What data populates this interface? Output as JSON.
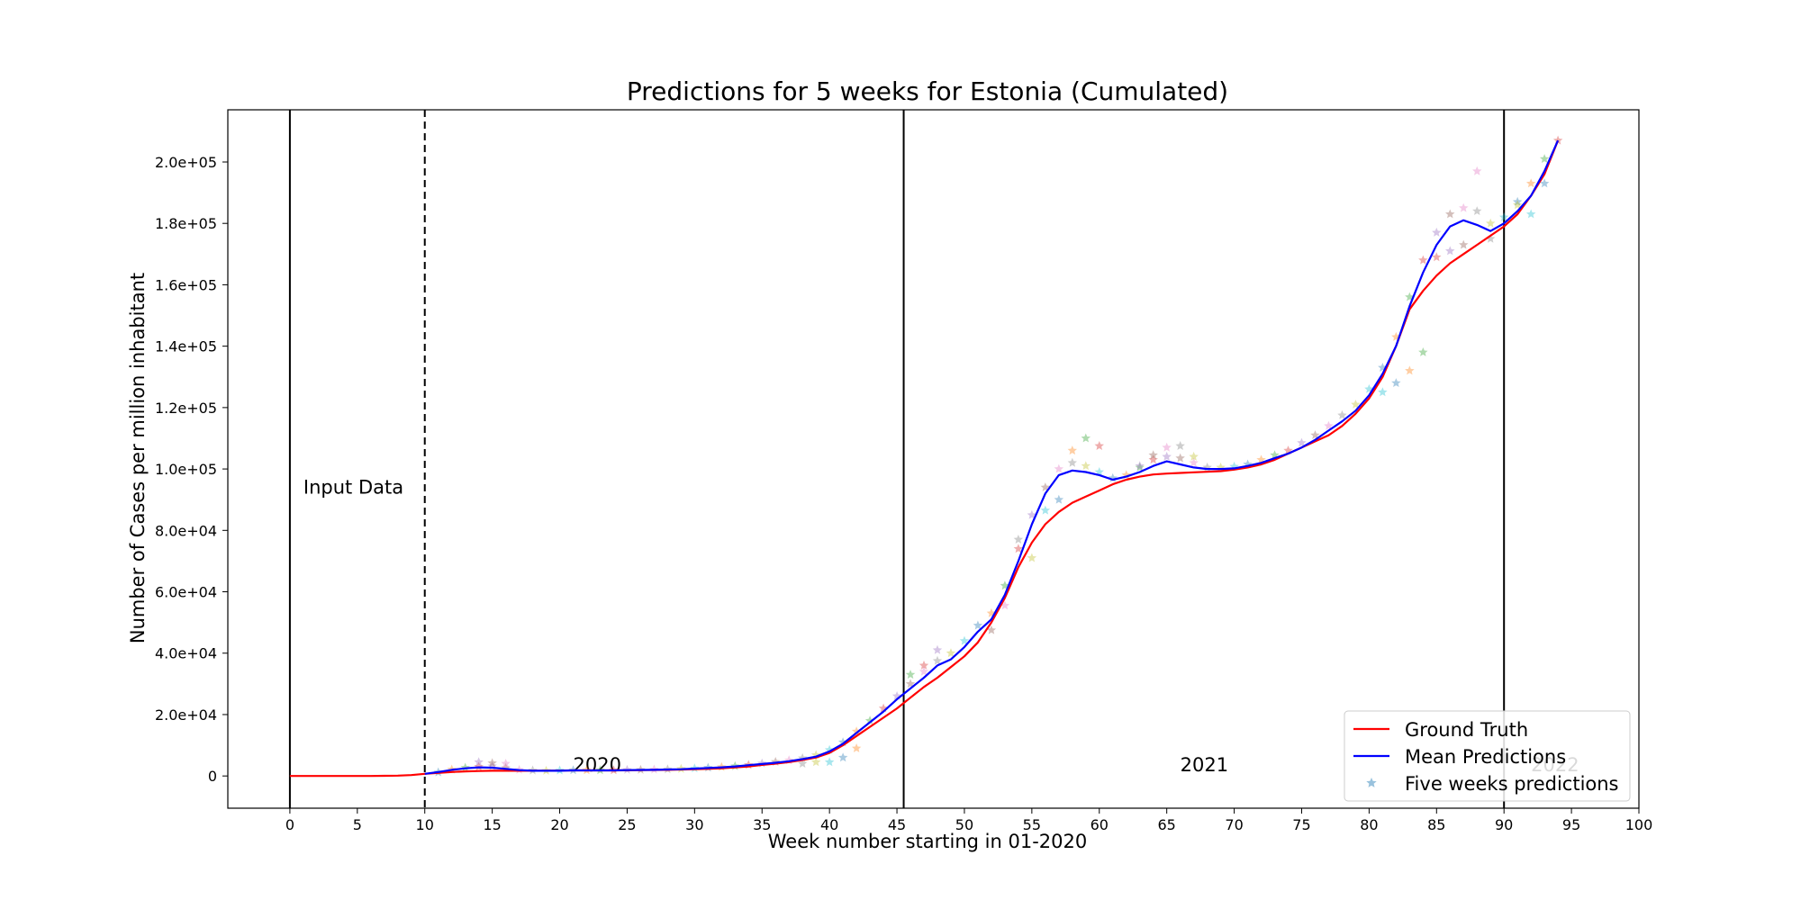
{
  "chart_data": {
    "type": "line",
    "title": "Predictions for 5 weeks for Estonia (Cumulated)",
    "xlabel": "Week number starting in 01-2020",
    "ylabel": "Number of Cases per million inhabitant",
    "xlim": [
      -4.6,
      100
    ],
    "ylim": [
      -10500,
      217000
    ],
    "xticks": [
      0,
      5,
      10,
      15,
      20,
      25,
      30,
      35,
      40,
      45,
      50,
      55,
      60,
      65,
      70,
      75,
      80,
      85,
      90,
      95,
      100
    ],
    "xtick_labels": [
      "0",
      "5",
      "10",
      "15",
      "20",
      "25",
      "30",
      "35",
      "40",
      "45",
      "50",
      "55",
      "60",
      "65",
      "70",
      "75",
      "80",
      "85",
      "90",
      "95",
      "100"
    ],
    "yticks": [
      0,
      20000,
      40000,
      60000,
      80000,
      100000,
      120000,
      140000,
      160000,
      180000,
      200000
    ],
    "ytick_labels": [
      "0",
      "2.0e+04",
      "4.0e+04",
      "6.0e+04",
      "8.0e+04",
      "1.0e+05",
      "1.2e+05",
      "1.4e+05",
      "1.6e+05",
      "1.8e+05",
      "2.0e+05"
    ],
    "vlines": [
      {
        "x": 0,
        "style": "solid"
      },
      {
        "x": 10,
        "style": "dashed"
      },
      {
        "x": 45.5,
        "style": "solid"
      },
      {
        "x": 90,
        "style": "solid"
      }
    ],
    "annotations": [
      {
        "text": "Input Data",
        "x": 1,
        "y": 92000,
        "color": "#000000"
      },
      {
        "text": "2020",
        "x": 21,
        "y": 1500,
        "color": "#000000"
      },
      {
        "text": "2021",
        "x": 66,
        "y": 1500,
        "color": "#000000"
      },
      {
        "text": "2022",
        "x": 92,
        "y": 1500,
        "color": "#bbbbbb"
      }
    ],
    "legend": {
      "position": "lower right",
      "entries": [
        {
          "label": "Ground Truth",
          "color": "#ff0000",
          "marker": "line"
        },
        {
          "label": "Mean Predictions",
          "color": "#0000ff",
          "marker": "line"
        },
        {
          "label": "Five weeks predictions",
          "color": "#7fb3d5",
          "marker": "star"
        }
      ]
    },
    "series": [
      {
        "name": "Ground Truth",
        "color": "#ff0000",
        "x": [
          0,
          1,
          2,
          3,
          4,
          5,
          6,
          7,
          8,
          9,
          10,
          11,
          12,
          13,
          14,
          15,
          16,
          17,
          18,
          19,
          20,
          21,
          22,
          23,
          24,
          25,
          26,
          27,
          28,
          29,
          30,
          31,
          32,
          33,
          34,
          35,
          36,
          37,
          38,
          39,
          40,
          41,
          42,
          43,
          44,
          45,
          46,
          47,
          48,
          49,
          50,
          51,
          52,
          53,
          54,
          55,
          56,
          57,
          58,
          59,
          60,
          61,
          62,
          63,
          64,
          65,
          66,
          67,
          68,
          69,
          70,
          71,
          72,
          73,
          74,
          75,
          76,
          77,
          78,
          79,
          80,
          81,
          82,
          83,
          84,
          85,
          86,
          87,
          88,
          89,
          90,
          91,
          92,
          93,
          94
        ],
        "y": [
          0,
          0,
          0,
          0,
          0,
          0,
          0,
          50,
          100,
          300,
          700,
          1000,
          1300,
          1500,
          1600,
          1700,
          1700,
          1700,
          1700,
          1700,
          1750,
          1800,
          1800,
          1800,
          1800,
          1850,
          1900,
          1950,
          2000,
          2100,
          2200,
          2300,
          2500,
          2800,
          3100,
          3600,
          4000,
          4500,
          5200,
          6000,
          7500,
          10000,
          13000,
          16000,
          19000,
          22000,
          25500,
          29000,
          32000,
          35500,
          39000,
          43500,
          50000,
          58000,
          68000,
          76000,
          82000,
          86000,
          89000,
          91000,
          93000,
          95000,
          96500,
          97500,
          98200,
          98500,
          98700,
          98900,
          99100,
          99300,
          99800,
          100500,
          101500,
          103000,
          105000,
          107000,
          109000,
          111000,
          114000,
          118000,
          123000,
          130000,
          140000,
          152000,
          158000,
          163000,
          167000,
          170000,
          173000,
          176000,
          179000,
          183000,
          189000,
          196000,
          207000
        ]
      },
      {
        "name": "Mean Predictions",
        "color": "#0000ff",
        "x": [
          10,
          11,
          12,
          13,
          14,
          15,
          16,
          17,
          18,
          19,
          20,
          21,
          22,
          23,
          24,
          25,
          26,
          27,
          28,
          29,
          30,
          31,
          32,
          33,
          34,
          35,
          36,
          37,
          38,
          39,
          40,
          41,
          42,
          43,
          44,
          45,
          46,
          47,
          48,
          49,
          50,
          51,
          52,
          53,
          54,
          55,
          56,
          57,
          58,
          59,
          60,
          61,
          62,
          63,
          64,
          65,
          66,
          67,
          68,
          69,
          70,
          71,
          72,
          73,
          74,
          75,
          76,
          77,
          78,
          79,
          80,
          81,
          82,
          83,
          84,
          85,
          86,
          87,
          88,
          89,
          90,
          91,
          92,
          93,
          94
        ],
        "y": [
          700,
          1300,
          2000,
          2500,
          2800,
          2700,
          2300,
          1900,
          1700,
          1700,
          1700,
          1800,
          1800,
          1800,
          1800,
          1900,
          1950,
          2000,
          2100,
          2200,
          2400,
          2600,
          2800,
          3100,
          3500,
          3900,
          4300,
          4800,
          5500,
          6300,
          8000,
          10500,
          14000,
          17500,
          21000,
          25000,
          28500,
          32000,
          36000,
          38000,
          42000,
          47000,
          51000,
          59000,
          70000,
          82000,
          92000,
          98000,
          99500,
          99000,
          98000,
          96500,
          97500,
          99000,
          101000,
          102500,
          101500,
          100500,
          100000,
          100000,
          100200,
          101000,
          102000,
          103500,
          105000,
          107000,
          109500,
          112500,
          115500,
          119000,
          124000,
          131000,
          140000,
          153000,
          164000,
          173000,
          179000,
          181000,
          179500,
          177500,
          180000,
          184000,
          189000,
          197000,
          207000
        ]
      },
      {
        "name": "Five weeks predictions",
        "marker": "star",
        "color": "#7fb3d5",
        "x": [
          11,
          12,
          13,
          14,
          15,
          16,
          17,
          18,
          19,
          20,
          21,
          22,
          23,
          24,
          25,
          26,
          27,
          28,
          29,
          30,
          31,
          32,
          33,
          34,
          35,
          36,
          37,
          38,
          39,
          40,
          41,
          42,
          43,
          44,
          45,
          46,
          47,
          48,
          49,
          50,
          51,
          52,
          53,
          54,
          55,
          56,
          57,
          58,
          59,
          60,
          61,
          62,
          63,
          64,
          65,
          66,
          67,
          68,
          69,
          70,
          71,
          72,
          73,
          74,
          75,
          76,
          77,
          78,
          79,
          80,
          81,
          82,
          83,
          84,
          85,
          86,
          87,
          88,
          89,
          90,
          91,
          92,
          93,
          94,
          14,
          15,
          16,
          38,
          39,
          40,
          41,
          42,
          46,
          47,
          48,
          52,
          53,
          54,
          55,
          56,
          57,
          58,
          59,
          60,
          63,
          64,
          65,
          66,
          67,
          81,
          82,
          83,
          84,
          85,
          86,
          87,
          88,
          89,
          91,
          92,
          93
        ],
        "y": [
          1200,
          2100,
          2700,
          3000,
          3200,
          2600,
          2000,
          1800,
          1700,
          1800,
          1900,
          1900,
          1900,
          1900,
          2000,
          2000,
          2100,
          2200,
          2300,
          2500,
          2700,
          2900,
          3200,
          3600,
          4100,
          4600,
          5100,
          5800,
          6800,
          8500,
          11000,
          14500,
          18000,
          22000,
          26000,
          30000,
          34000,
          37500,
          40000,
          44000,
          49000,
          53000,
          62000,
          74000,
          85000,
          94000,
          100000,
          102000,
          101000,
          99000,
          97000,
          98000,
          100500,
          103000,
          104000,
          103500,
          102000,
          100500,
          100500,
          100800,
          101500,
          103000,
          104500,
          106000,
          108500,
          111000,
          114000,
          117500,
          121000,
          126000,
          133000,
          143000,
          156000,
          168000,
          177000,
          183000,
          185000,
          184000,
          180000,
          182000,
          187000,
          193000,
          201000,
          207000,
          4500,
          4200,
          4000,
          4000,
          4500,
          4500,
          6000,
          9000,
          33000,
          36000,
          41000,
          47500,
          55500,
          77000,
          71000,
          86500,
          90000,
          106000,
          110000,
          107500,
          101000,
          104500,
          107000,
          107500,
          104000,
          125000,
          128000,
          132000,
          138000,
          169000,
          171000,
          173000,
          197000,
          175000,
          186000,
          183000,
          193000
        ]
      }
    ]
  }
}
